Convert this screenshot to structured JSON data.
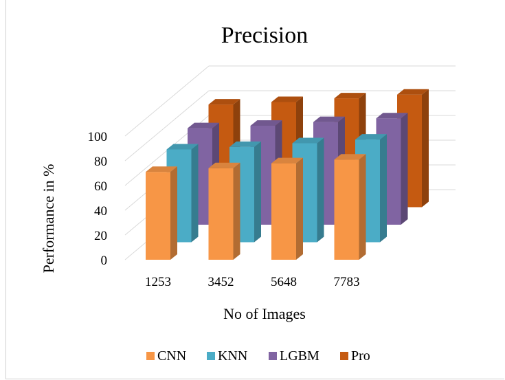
{
  "chart_data": {
    "type": "bar",
    "title": "Precision",
    "xlabel": "No of Images",
    "ylabel": "Performance in %",
    "categories": [
      "1253",
      "3452",
      "5648",
      "7783"
    ],
    "y_ticks": [
      "0",
      "20",
      "40",
      "60",
      "80",
      "100"
    ],
    "ylim": [
      0,
      100
    ],
    "grid": true,
    "legend_position": "bottom",
    "series": [
      {
        "name": "CNN",
        "color": "#F79646",
        "values": [
          71,
          74,
          78,
          81
        ]
      },
      {
        "name": "KNN",
        "color": "#4BACC6",
        "values": [
          75,
          77,
          80,
          83
        ]
      },
      {
        "name": "LGBM",
        "color": "#8064A2",
        "values": [
          78,
          80,
          83,
          86
        ]
      },
      {
        "name": "Pro",
        "color": "#C55A11",
        "values": [
          83,
          85,
          88,
          91
        ]
      }
    ]
  }
}
